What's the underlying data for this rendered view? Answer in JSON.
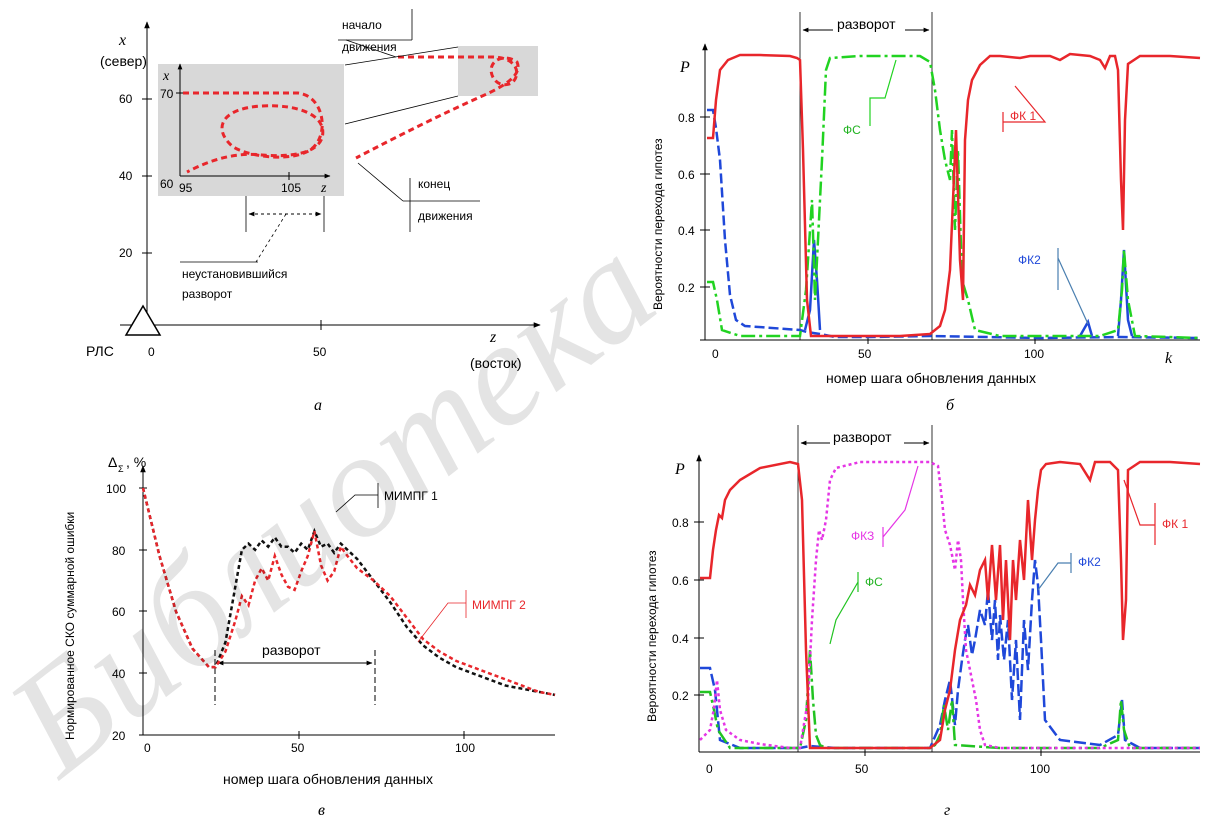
{
  "watermark": "Библиотека",
  "chart_data": [
    {
      "id": "a",
      "type": "line",
      "caption": "а",
      "xlabel": "z",
      "xlabel_unit": "(восток)",
      "ylabel": "x",
      "ylabel_unit": "(север)",
      "x_ticks": [
        "0",
        "50"
      ],
      "y_ticks": [
        "20",
        "40",
        "60"
      ],
      "origin_label": "РЛС",
      "annotations": [
        "начало движения",
        "конец движения",
        "неустановившийся разворот"
      ],
      "inset": {
        "xlabel": "z",
        "ylabel": "x",
        "x_ticks": [
          "95",
          "105"
        ],
        "y_ticks": [
          "60",
          "70"
        ]
      },
      "trajectory_color": "#e8262b"
    },
    {
      "id": "b",
      "type": "line",
      "caption": "б",
      "xlabel": "номер шага обновления данных",
      "xlabel_var": "k",
      "ylabel": "Вероятности перехода гипотез",
      "ylabel_var": "P",
      "xlim": [
        0,
        125
      ],
      "ylim": [
        0,
        1
      ],
      "x_ticks": [
        "0",
        "50",
        "100"
      ],
      "y_ticks": [
        "0.2",
        "0.4",
        "0.6",
        "0.8"
      ],
      "turn_label": "разворот",
      "turn_range": [
        27,
        68
      ],
      "series": [
        {
          "name": "ФК 1",
          "color": "#e8262b"
        },
        {
          "name": "ФС",
          "color": "#21d321"
        },
        {
          "name": "ФК2",
          "color": "#1f48d9"
        }
      ]
    },
    {
      "id": "c",
      "type": "line",
      "caption": "в",
      "xlabel": "номер шага обновления данных",
      "ylabel": "Нормированное СКО суммарной ошибки",
      "ylabel_var": "Δ",
      "ylabel_sub": "Σ",
      "ylabel_unit": ", %",
      "xlim": [
        0,
        125
      ],
      "ylim": [
        20,
        100
      ],
      "x_ticks": [
        "0",
        "50",
        "100"
      ],
      "y_ticks": [
        "20",
        "40",
        "60",
        "80",
        "100"
      ],
      "turn_label": "разворот",
      "turn_range": [
        21,
        71
      ],
      "series": [
        {
          "name": "МИМПГ 1",
          "color": "#111111",
          "x": [
            0,
            5,
            10,
            15,
            20,
            22,
            25,
            28,
            30,
            32,
            34,
            36,
            38,
            40,
            42,
            44,
            46,
            48,
            50,
            52,
            54,
            56,
            58,
            60,
            62,
            65,
            70,
            75,
            80,
            85,
            90,
            95,
            100,
            105,
            110,
            115,
            120,
            125
          ],
          "y": [
            100,
            78,
            60,
            48,
            42,
            42,
            50,
            68,
            80,
            82,
            80,
            83,
            81,
            84,
            81,
            81,
            79,
            82,
            80,
            86,
            81,
            82,
            79,
            82,
            80,
            77,
            70,
            63,
            55,
            49,
            45,
            42,
            40,
            38,
            36,
            35,
            34,
            33
          ]
        },
        {
          "name": "МИМПГ 2",
          "color": "#e8262b",
          "x": [
            0,
            5,
            10,
            15,
            20,
            22,
            25,
            28,
            30,
            32,
            34,
            36,
            38,
            40,
            42,
            44,
            46,
            48,
            50,
            52,
            54,
            56,
            58,
            60,
            62,
            65,
            70,
            75,
            80,
            85,
            90,
            95,
            100,
            105,
            110,
            115,
            120,
            125
          ],
          "y": [
            100,
            78,
            60,
            48,
            42,
            42,
            47,
            57,
            65,
            62,
            70,
            74,
            70,
            78,
            72,
            68,
            67,
            73,
            78,
            86,
            75,
            70,
            73,
            81,
            78,
            74,
            70,
            65,
            58,
            51,
            47,
            44,
            42,
            40,
            38,
            36,
            34,
            33
          ]
        }
      ]
    },
    {
      "id": "d",
      "type": "line",
      "caption": "г",
      "xlabel": "",
      "ylabel": "Вероятности перехода гипотез",
      "ylabel_var": "P",
      "xlim": [
        0,
        130
      ],
      "ylim": [
        0,
        1
      ],
      "x_ticks": [
        "0",
        "50",
        "100"
      ],
      "y_ticks": [
        "0.2",
        "0.4",
        "0.6",
        "0.8"
      ],
      "turn_label": "разворот",
      "turn_range": [
        27,
        68
      ],
      "series": [
        {
          "name": "ФК 1",
          "color": "#e8262b"
        },
        {
          "name": "ФКЗ",
          "color": "#e535e5"
        },
        {
          "name": "ФС",
          "color": "#21c321"
        },
        {
          "name": "ФК2",
          "color": "#1f48d9"
        }
      ]
    }
  ]
}
